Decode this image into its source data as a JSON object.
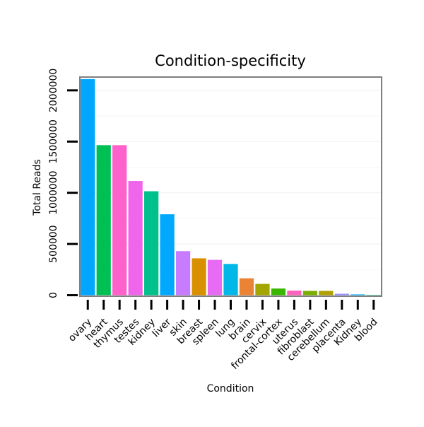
{
  "chart_data": {
    "type": "bar",
    "title": "Condition-specificity",
    "xlabel": "Condition",
    "ylabel": "Total Reads",
    "ylim": [
      -10000,
      2130000
    ],
    "yticks": [
      0,
      500000,
      1000000,
      1500000,
      2000000
    ],
    "ytick_labels": [
      "0",
      "500000",
      "1000000",
      "1500000",
      "2000000"
    ],
    "categories": [
      "ovary",
      "heart",
      "thymus",
      "testes",
      "kidney",
      "liver",
      "skin",
      "breast",
      "spleen",
      "lung",
      "brain",
      "cervix",
      "frontal-cortex",
      "uterus",
      "fibroblast",
      "cerebellum",
      "placenta",
      "Kidney",
      "blood"
    ],
    "values": [
      2110000,
      1465000,
      1465000,
      1115000,
      1015000,
      790000,
      430000,
      360000,
      345000,
      305000,
      165000,
      110000,
      65000,
      45000,
      42000,
      42000,
      14000,
      8000,
      2000
    ],
    "colors": [
      "#00A6FF",
      "#00C054",
      "#FF61CC",
      "#F066EA",
      "#00C18C",
      "#00A8FF",
      "#C77CFF",
      "#D89000",
      "#E86BF3",
      "#00B8E7",
      "#EB8335",
      "#A3A500",
      "#39B600",
      "#FF62BC",
      "#7CAE00",
      "#B0A100",
      "#9590FF",
      "#00B0F6",
      "#00BF7D"
    ],
    "grid": true,
    "legend": "none"
  }
}
